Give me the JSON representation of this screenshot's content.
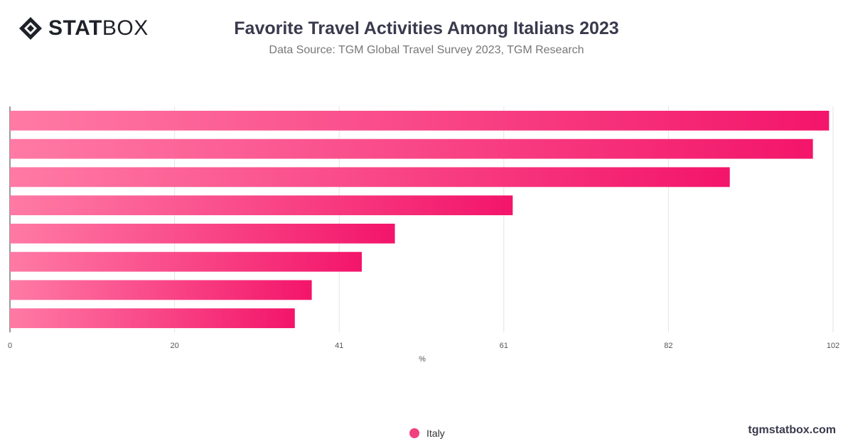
{
  "brand": {
    "logo_bold": "STAT",
    "logo_light": "BOX",
    "watermark": "tgmstatbox.com"
  },
  "header": {
    "title": "Favorite Travel Activities Among Italians 2023",
    "subtitle": "Data Source: TGM Global Travel Survey 2023, TGM Research"
  },
  "colors": {
    "bar_start": "#ff7aa5",
    "bar_end": "#f3156a",
    "legend_dot": "#f0417f"
  },
  "chart_data": {
    "type": "bar",
    "orientation": "horizontal",
    "categories": [
      "",
      "",
      "",
      "",
      "",
      "",
      "",
      ""
    ],
    "series": [
      {
        "name": "Italy",
        "values": [
          101.5,
          99.5,
          89.2,
          62.3,
          47.7,
          43.6,
          37.4,
          35.3
        ]
      }
    ],
    "xlabel": "%",
    "xlim": [
      0,
      102
    ],
    "xticks": [
      "0",
      "20",
      "41",
      "61",
      "82",
      "102"
    ],
    "xtick_values": [
      0,
      20.4,
      40.8,
      61.2,
      81.6,
      102
    ],
    "grid": true,
    "legend_position": "bottom-center"
  }
}
